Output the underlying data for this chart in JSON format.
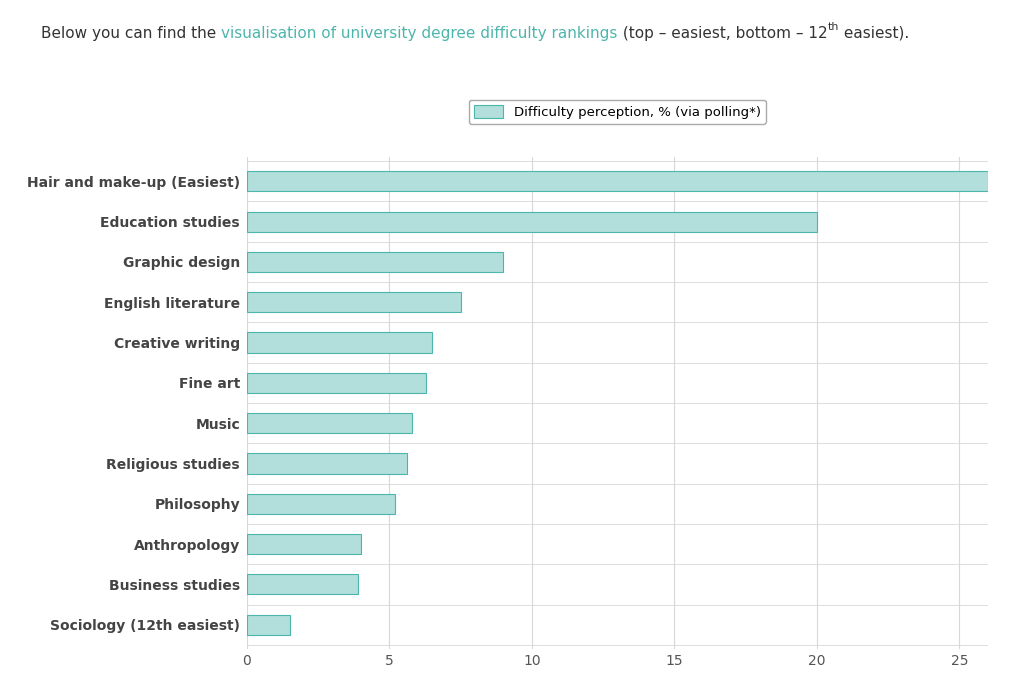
{
  "categories": [
    "Hair and make-up (Easiest)",
    "Education studies",
    "Graphic design",
    "English literature",
    "Creative writing",
    "Fine art",
    "Music",
    "Religious studies",
    "Philosophy",
    "Anthropology",
    "Business studies",
    "Sociology (12th easiest)"
  ],
  "values": [
    26,
    20,
    9,
    7.5,
    6.5,
    6.3,
    5.8,
    5.6,
    5.2,
    4.0,
    3.9,
    1.5
  ],
  "bar_color": "#b2dfdb",
  "bar_edge_color": "#4db6ac",
  "background_color": "#ffffff",
  "grid_color": "#d8d8d8",
  "legend_label": "Difficulty perception, % (via polling*)",
  "xlim": [
    0,
    26
  ],
  "xticks": [
    0,
    5,
    10,
    15,
    20,
    25
  ],
  "label_fontsize": 10,
  "tick_fontsize": 10,
  "title_fontsize": 11,
  "title_parts": [
    {
      "text": "Below you can find the ",
      "color": "#333333",
      "sup": false
    },
    {
      "text": "visualisation of university degree difficulty rankings",
      "color": "#4db6ac",
      "sup": false
    },
    {
      "text": " (top – easiest, bottom – 12",
      "color": "#333333",
      "sup": false
    },
    {
      "text": "th",
      "color": "#333333",
      "sup": true
    },
    {
      "text": " easiest).",
      "color": "#333333",
      "sup": false
    }
  ]
}
